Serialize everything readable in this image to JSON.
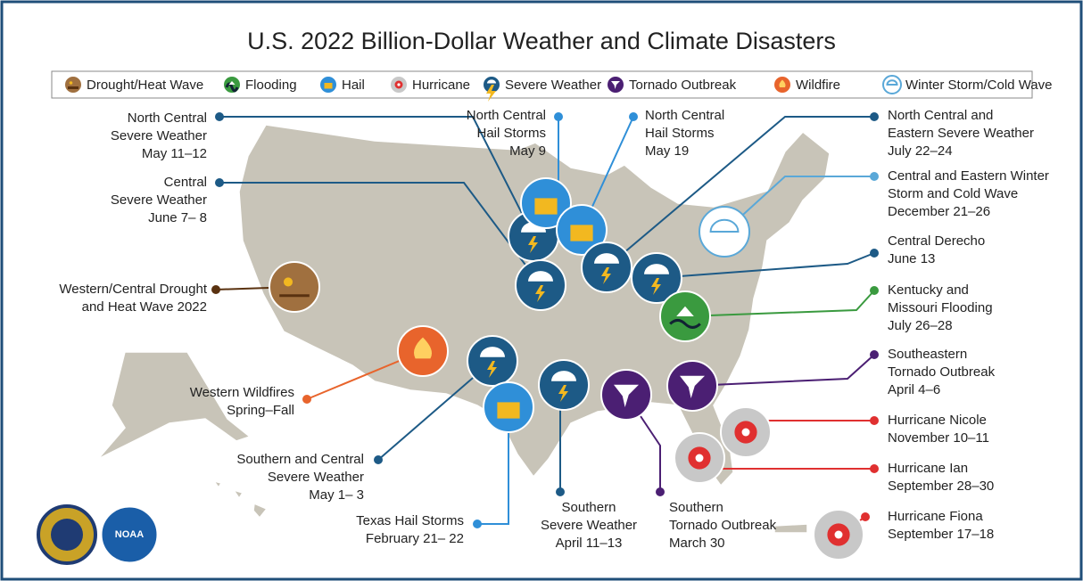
{
  "title": "U.S. 2022 Billion-Dollar Weather and Climate Disasters",
  "legend": [
    "Drought/Heat Wave",
    "Flooding",
    "Hail",
    "Hurricane",
    "Severe Weather",
    "Tornado Outbreak",
    "Wildfire",
    "Winter Storm/Cold Wave"
  ],
  "events": [
    {
      "lines": [
        "North Central",
        "Severe Weather",
        "May 11–12"
      ]
    },
    {
      "lines": [
        "Central",
        "Severe Weather",
        "June 7– 8"
      ]
    },
    {
      "lines": [
        "Western/Central Drought",
        "and Heat Wave 2022"
      ]
    },
    {
      "lines": [
        "Western Wildfires",
        "Spring–Fall"
      ]
    },
    {
      "lines": [
        "Southern and Central",
        "Severe Weather",
        "May 1– 3"
      ]
    },
    {
      "lines": [
        "Texas Hail Storms",
        "February 21– 22"
      ]
    },
    {
      "lines": [
        "Southern",
        "Severe Weather",
        "April 11–13"
      ]
    },
    {
      "lines": [
        "Southern",
        "Tornado Outbreak",
        "March 30"
      ]
    },
    {
      "lines": [
        "North Central",
        "Hail Storms",
        "May 9"
      ]
    },
    {
      "lines": [
        "North Central",
        "Hail Storms",
        "May 19"
      ]
    },
    {
      "lines": [
        "North Central and",
        "Eastern Severe Weather",
        "July 22–24"
      ]
    },
    {
      "lines": [
        "Central and Eastern Winter",
        "Storm and Cold Wave",
        "December 21–26"
      ]
    },
    {
      "lines": [
        "Central Derecho",
        "June 13"
      ]
    },
    {
      "lines": [
        "Kentucky and",
        "Missouri Flooding",
        "July 26–28"
      ]
    },
    {
      "lines": [
        "Southeastern",
        "Tornado Outbreak",
        "April 4–6"
      ]
    },
    {
      "lines": [
        "Hurricane Nicole",
        "November 10–11"
      ]
    },
    {
      "lines": [
        "Hurricane Ian",
        "September 28–30"
      ]
    },
    {
      "lines": [
        "Hurricane Fiona",
        "September 17–18"
      ]
    }
  ],
  "logos": [
    "NOAA"
  ]
}
